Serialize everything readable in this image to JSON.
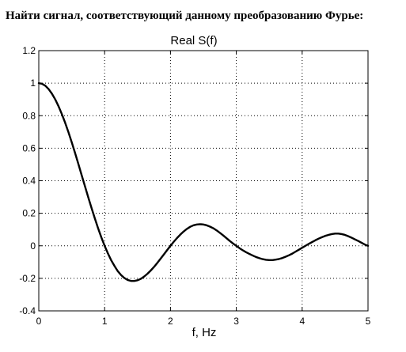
{
  "question": "Найти сигнал, соответствующий данному преобразованию Фурье:",
  "chart_data": {
    "type": "line",
    "title": "Real S(f)",
    "xlabel": "f, Hz",
    "ylabel": "",
    "xlim": [
      0,
      5
    ],
    "ylim": [
      -0.4,
      1.2
    ],
    "x_ticks": [
      "0",
      "1",
      "2",
      "3",
      "4",
      "5"
    ],
    "y_ticks": [
      "-0.4",
      "-0.2",
      "0",
      "0.2",
      "0.4",
      "0.6",
      "0.8",
      "1",
      "1.2"
    ],
    "grid": "on (dotted, major ticks)",
    "series": [
      {
        "x": [
          0,
          0.05,
          0.1,
          0.15,
          0.2,
          0.25,
          0.3,
          0.35,
          0.4,
          0.45,
          0.5,
          0.55,
          0.6,
          0.65,
          0.7,
          0.75,
          0.8,
          0.85,
          0.9,
          0.95,
          1.0,
          1.05,
          1.1,
          1.15,
          1.2,
          1.25,
          1.3,
          1.35,
          1.4,
          1.45,
          1.5,
          1.55,
          1.6,
          1.65,
          1.7,
          1.75,
          1.8,
          1.85,
          1.9,
          1.95,
          2.0,
          2.05,
          2.1,
          2.15,
          2.2,
          2.25,
          2.3,
          2.35,
          2.4,
          2.45,
          2.5,
          2.55,
          2.6,
          2.65,
          2.7,
          2.75,
          2.8,
          2.85,
          2.9,
          2.95,
          3.0,
          3.05,
          3.1,
          3.15,
          3.2,
          3.25,
          3.3,
          3.35,
          3.4,
          3.45,
          3.5,
          3.55,
          3.6,
          3.65,
          3.7,
          3.75,
          3.8,
          3.85,
          3.9,
          3.95,
          4.0,
          4.05,
          4.1,
          4.15,
          4.2,
          4.25,
          4.3,
          4.35,
          4.4,
          4.45,
          4.5,
          4.55,
          4.6,
          4.65,
          4.7,
          4.75,
          4.8,
          4.85,
          4.9,
          4.95,
          5.0
        ],
        "y": [
          1.0,
          0.996,
          0.984,
          0.963,
          0.935,
          0.9,
          0.858,
          0.81,
          0.757,
          0.699,
          0.637,
          0.572,
          0.505,
          0.436,
          0.368,
          0.3,
          0.234,
          0.17,
          0.109,
          0.052,
          0.0,
          -0.047,
          -0.089,
          -0.124,
          -0.156,
          -0.18,
          -0.198,
          -0.21,
          -0.216,
          -0.216,
          -0.212,
          -0.203,
          -0.189,
          -0.172,
          -0.152,
          -0.13,
          -0.105,
          -0.079,
          -0.053,
          -0.026,
          0.0,
          0.025,
          0.048,
          0.069,
          0.088,
          0.104,
          0.117,
          0.126,
          0.131,
          0.133,
          0.131,
          0.126,
          0.118,
          0.108,
          0.095,
          0.08,
          0.064,
          0.047,
          0.03,
          0.014,
          0.0,
          -0.015,
          -0.028,
          -0.04,
          -0.05,
          -0.06,
          -0.069,
          -0.076,
          -0.082,
          -0.086,
          -0.088,
          -0.088,
          -0.085,
          -0.081,
          -0.075,
          -0.067,
          -0.058,
          -0.048,
          -0.036,
          -0.024,
          -0.012,
          0.0,
          0.012,
          0.023,
          0.034,
          0.044,
          0.053,
          0.061,
          0.067,
          0.072,
          0.075,
          0.075,
          0.072,
          0.067,
          0.059,
          0.05,
          0.04,
          0.03,
          0.019,
          0.008,
          0.0
        ]
      }
    ],
    "colors": {
      "line": "#000000",
      "grid": "#000000",
      "frame": "#000000"
    }
  }
}
